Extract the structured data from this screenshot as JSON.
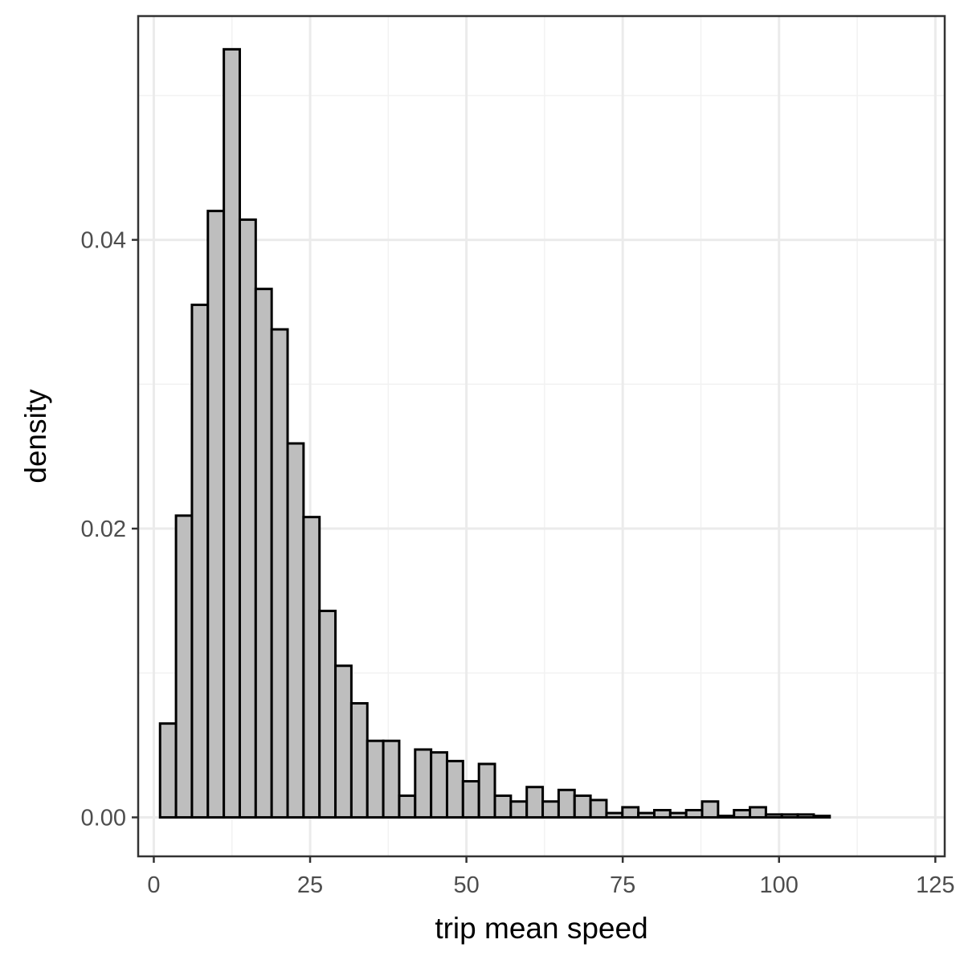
{
  "colors": {
    "background": "#ffffff",
    "panel_border": "#333333",
    "grid_major": "#ebebeb",
    "grid_minor": "#f2f2f2",
    "bar_fill": "#bebebe",
    "bar_stroke": "#000000",
    "tick_text": "#4d4d4d",
    "axis_title": "#000000"
  },
  "chart_data": {
    "type": "bar",
    "title": "",
    "xlabel": "trip mean speed",
    "ylabel": "density",
    "xlim": [
      -2.5,
      126.5
    ],
    "ylim": [
      -0.0027,
      0.0555
    ],
    "x_ticks": [
      0,
      25,
      50,
      75,
      100,
      125
    ],
    "x_tick_labels": [
      "0",
      "25",
      "50",
      "75",
      "100",
      "125"
    ],
    "y_ticks": [
      0.0,
      0.02,
      0.04
    ],
    "y_tick_labels": [
      "0.00",
      "0.02",
      "0.04"
    ],
    "y_minor_ticks": [
      0.01,
      0.03,
      0.05
    ],
    "grid": true,
    "bin_width": 2.55,
    "bin_edges_start": 1.0,
    "values": [
      0.0065,
      0.0209,
      0.0355,
      0.042,
      0.0532,
      0.0414,
      0.0366,
      0.0338,
      0.0259,
      0.0208,
      0.0143,
      0.0105,
      0.0079,
      0.0053,
      0.0053,
      0.0015,
      0.0047,
      0.0045,
      0.0039,
      0.0025,
      0.0037,
      0.0015,
      0.0011,
      0.0021,
      0.0011,
      0.0019,
      0.0015,
      0.0012,
      0.0003,
      0.0007,
      0.0003,
      0.0005,
      0.0003,
      0.0005,
      0.0011,
      0.0001,
      0.0005,
      0.0007,
      0.0002,
      0.0002,
      0.0002,
      0.0001,
      0.0,
      0.0,
      0.0,
      0.0,
      0.0,
      0.0,
      0.0,
      0.0,
      0.0,
      0.0,
      0.0,
      0.0,
      0.0,
      0.0,
      0.0,
      0.0,
      0.0,
      0.0,
      0.0,
      0.0,
      0.0,
      0.0,
      0.0,
      0.0,
      0.0,
      0.0,
      0.0,
      0.0,
      0.0,
      0.0,
      0.0,
      0.0,
      0.0,
      0.0,
      0.0,
      0.0,
      0.0,
      0.0,
      0.0,
      0.0,
      0.0,
      0.0,
      0.0,
      0.0,
      0.0,
      0.0,
      0.0,
      0.0,
      0.0,
      0.0,
      0.0,
      0.0,
      0.0,
      0.0,
      0.0,
      0.0,
      0.0,
      0.0,
      0.0,
      0.0,
      0.0,
      0.0,
      0.0,
      0.0,
      0.0,
      0.0,
      0.0,
      0.0,
      0.0,
      0.0,
      0.0,
      0.0,
      0.0,
      0.0,
      0.0,
      0.0,
      0.0,
      0.0
    ],
    "x_max": 123.5
  }
}
